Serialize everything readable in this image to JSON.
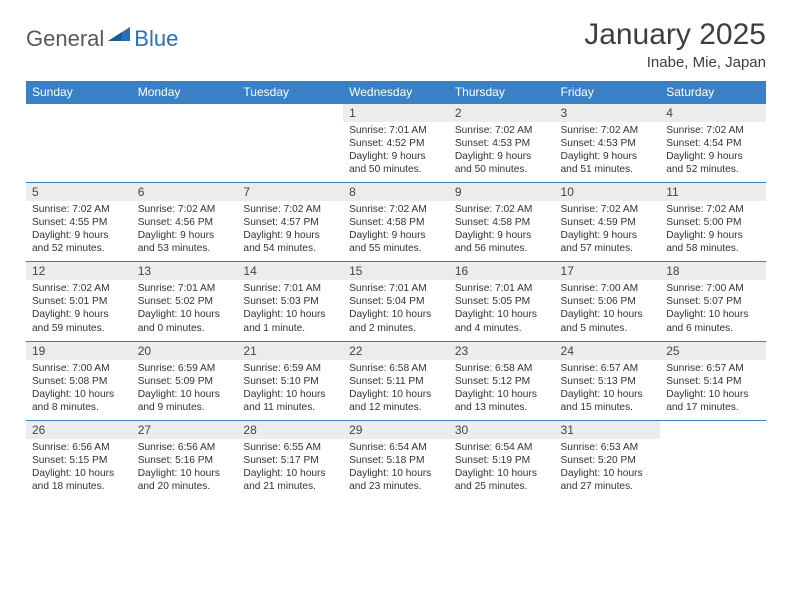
{
  "brand": {
    "general": "General",
    "blue": "Blue"
  },
  "title": "January 2025",
  "location": "Inabe, Mie, Japan",
  "colors": {
    "header_bg": "#3a80c4",
    "header_text": "#ffffff",
    "daynum_bg": "#ececec",
    "border": "#3a80c4",
    "title_color": "#3a3f44",
    "body_text": "#333333",
    "logo_general": "#555a5e",
    "logo_blue": "#2d6fb4",
    "page_bg": "#ffffff"
  },
  "typography": {
    "title_fontsize": 30,
    "location_fontsize": 15,
    "dow_fontsize": 12,
    "daynum_fontsize": 12,
    "body_fontsize": 10.2
  },
  "days_of_week": [
    "Sunday",
    "Monday",
    "Tuesday",
    "Wednesday",
    "Thursday",
    "Friday",
    "Saturday"
  ],
  "weeks": [
    [
      {
        "n": "",
        "sunrise": "",
        "sunset": "",
        "daylight1": "",
        "daylight2": "",
        "empty": true
      },
      {
        "n": "",
        "sunrise": "",
        "sunset": "",
        "daylight1": "",
        "daylight2": "",
        "empty": true
      },
      {
        "n": "",
        "sunrise": "",
        "sunset": "",
        "daylight1": "",
        "daylight2": "",
        "empty": true
      },
      {
        "n": "1",
        "sunrise": "Sunrise: 7:01 AM",
        "sunset": "Sunset: 4:52 PM",
        "daylight1": "Daylight: 9 hours",
        "daylight2": "and 50 minutes."
      },
      {
        "n": "2",
        "sunrise": "Sunrise: 7:02 AM",
        "sunset": "Sunset: 4:53 PM",
        "daylight1": "Daylight: 9 hours",
        "daylight2": "and 50 minutes."
      },
      {
        "n": "3",
        "sunrise": "Sunrise: 7:02 AM",
        "sunset": "Sunset: 4:53 PM",
        "daylight1": "Daylight: 9 hours",
        "daylight2": "and 51 minutes."
      },
      {
        "n": "4",
        "sunrise": "Sunrise: 7:02 AM",
        "sunset": "Sunset: 4:54 PM",
        "daylight1": "Daylight: 9 hours",
        "daylight2": "and 52 minutes."
      }
    ],
    [
      {
        "n": "5",
        "sunrise": "Sunrise: 7:02 AM",
        "sunset": "Sunset: 4:55 PM",
        "daylight1": "Daylight: 9 hours",
        "daylight2": "and 52 minutes."
      },
      {
        "n": "6",
        "sunrise": "Sunrise: 7:02 AM",
        "sunset": "Sunset: 4:56 PM",
        "daylight1": "Daylight: 9 hours",
        "daylight2": "and 53 minutes."
      },
      {
        "n": "7",
        "sunrise": "Sunrise: 7:02 AM",
        "sunset": "Sunset: 4:57 PM",
        "daylight1": "Daylight: 9 hours",
        "daylight2": "and 54 minutes."
      },
      {
        "n": "8",
        "sunrise": "Sunrise: 7:02 AM",
        "sunset": "Sunset: 4:58 PM",
        "daylight1": "Daylight: 9 hours",
        "daylight2": "and 55 minutes."
      },
      {
        "n": "9",
        "sunrise": "Sunrise: 7:02 AM",
        "sunset": "Sunset: 4:58 PM",
        "daylight1": "Daylight: 9 hours",
        "daylight2": "and 56 minutes."
      },
      {
        "n": "10",
        "sunrise": "Sunrise: 7:02 AM",
        "sunset": "Sunset: 4:59 PM",
        "daylight1": "Daylight: 9 hours",
        "daylight2": "and 57 minutes."
      },
      {
        "n": "11",
        "sunrise": "Sunrise: 7:02 AM",
        "sunset": "Sunset: 5:00 PM",
        "daylight1": "Daylight: 9 hours",
        "daylight2": "and 58 minutes."
      }
    ],
    [
      {
        "n": "12",
        "sunrise": "Sunrise: 7:02 AM",
        "sunset": "Sunset: 5:01 PM",
        "daylight1": "Daylight: 9 hours",
        "daylight2": "and 59 minutes."
      },
      {
        "n": "13",
        "sunrise": "Sunrise: 7:01 AM",
        "sunset": "Sunset: 5:02 PM",
        "daylight1": "Daylight: 10 hours",
        "daylight2": "and 0 minutes."
      },
      {
        "n": "14",
        "sunrise": "Sunrise: 7:01 AM",
        "sunset": "Sunset: 5:03 PM",
        "daylight1": "Daylight: 10 hours",
        "daylight2": "and 1 minute."
      },
      {
        "n": "15",
        "sunrise": "Sunrise: 7:01 AM",
        "sunset": "Sunset: 5:04 PM",
        "daylight1": "Daylight: 10 hours",
        "daylight2": "and 2 minutes."
      },
      {
        "n": "16",
        "sunrise": "Sunrise: 7:01 AM",
        "sunset": "Sunset: 5:05 PM",
        "daylight1": "Daylight: 10 hours",
        "daylight2": "and 4 minutes."
      },
      {
        "n": "17",
        "sunrise": "Sunrise: 7:00 AM",
        "sunset": "Sunset: 5:06 PM",
        "daylight1": "Daylight: 10 hours",
        "daylight2": "and 5 minutes."
      },
      {
        "n": "18",
        "sunrise": "Sunrise: 7:00 AM",
        "sunset": "Sunset: 5:07 PM",
        "daylight1": "Daylight: 10 hours",
        "daylight2": "and 6 minutes."
      }
    ],
    [
      {
        "n": "19",
        "sunrise": "Sunrise: 7:00 AM",
        "sunset": "Sunset: 5:08 PM",
        "daylight1": "Daylight: 10 hours",
        "daylight2": "and 8 minutes."
      },
      {
        "n": "20",
        "sunrise": "Sunrise: 6:59 AM",
        "sunset": "Sunset: 5:09 PM",
        "daylight1": "Daylight: 10 hours",
        "daylight2": "and 9 minutes."
      },
      {
        "n": "21",
        "sunrise": "Sunrise: 6:59 AM",
        "sunset": "Sunset: 5:10 PM",
        "daylight1": "Daylight: 10 hours",
        "daylight2": "and 11 minutes."
      },
      {
        "n": "22",
        "sunrise": "Sunrise: 6:58 AM",
        "sunset": "Sunset: 5:11 PM",
        "daylight1": "Daylight: 10 hours",
        "daylight2": "and 12 minutes."
      },
      {
        "n": "23",
        "sunrise": "Sunrise: 6:58 AM",
        "sunset": "Sunset: 5:12 PM",
        "daylight1": "Daylight: 10 hours",
        "daylight2": "and 13 minutes."
      },
      {
        "n": "24",
        "sunrise": "Sunrise: 6:57 AM",
        "sunset": "Sunset: 5:13 PM",
        "daylight1": "Daylight: 10 hours",
        "daylight2": "and 15 minutes."
      },
      {
        "n": "25",
        "sunrise": "Sunrise: 6:57 AM",
        "sunset": "Sunset: 5:14 PM",
        "daylight1": "Daylight: 10 hours",
        "daylight2": "and 17 minutes."
      }
    ],
    [
      {
        "n": "26",
        "sunrise": "Sunrise: 6:56 AM",
        "sunset": "Sunset: 5:15 PM",
        "daylight1": "Daylight: 10 hours",
        "daylight2": "and 18 minutes."
      },
      {
        "n": "27",
        "sunrise": "Sunrise: 6:56 AM",
        "sunset": "Sunset: 5:16 PM",
        "daylight1": "Daylight: 10 hours",
        "daylight2": "and 20 minutes."
      },
      {
        "n": "28",
        "sunrise": "Sunrise: 6:55 AM",
        "sunset": "Sunset: 5:17 PM",
        "daylight1": "Daylight: 10 hours",
        "daylight2": "and 21 minutes."
      },
      {
        "n": "29",
        "sunrise": "Sunrise: 6:54 AM",
        "sunset": "Sunset: 5:18 PM",
        "daylight1": "Daylight: 10 hours",
        "daylight2": "and 23 minutes."
      },
      {
        "n": "30",
        "sunrise": "Sunrise: 6:54 AM",
        "sunset": "Sunset: 5:19 PM",
        "daylight1": "Daylight: 10 hours",
        "daylight2": "and 25 minutes."
      },
      {
        "n": "31",
        "sunrise": "Sunrise: 6:53 AM",
        "sunset": "Sunset: 5:20 PM",
        "daylight1": "Daylight: 10 hours",
        "daylight2": "and 27 minutes."
      },
      {
        "n": "",
        "sunrise": "",
        "sunset": "",
        "daylight1": "",
        "daylight2": "",
        "empty": true
      }
    ]
  ]
}
